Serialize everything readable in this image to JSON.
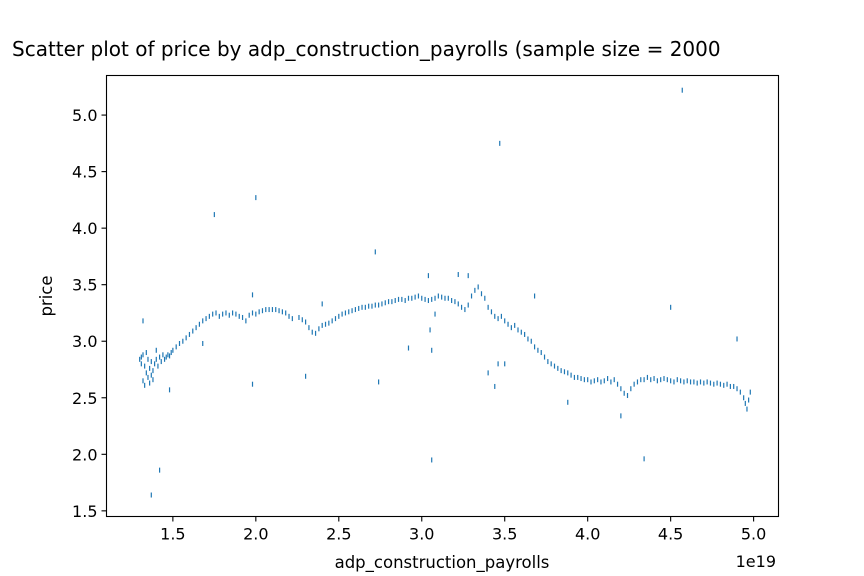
{
  "chart_data": {
    "type": "scatter",
    "title": "Scatter plot of price by adp_construction_payrolls (sample size = 2000",
    "xlabel": "adp_construction_payrolls",
    "ylabel": "price",
    "x_offset_text": "1e19",
    "x_scale_multiplier": 1e+19,
    "xlim": [
      1.1,
      5.15
    ],
    "ylim": [
      1.45,
      5.35
    ],
    "x_ticks": [
      1.5,
      2.0,
      2.5,
      3.0,
      3.5,
      4.0,
      4.5,
      5.0
    ],
    "x_tick_labels": [
      "1.5",
      "2.0",
      "2.5",
      "3.0",
      "3.5",
      "4.0",
      "4.5",
      "5.0"
    ],
    "y_ticks": [
      1.5,
      2.0,
      2.5,
      3.0,
      3.5,
      4.0,
      4.5,
      5.0
    ],
    "y_tick_labels": [
      "1.5",
      "2.0",
      "2.5",
      "3.0",
      "3.5",
      "4.0",
      "4.5",
      "5.0"
    ],
    "marker_color": "#1f77b4",
    "grid": false,
    "points": [
      [
        1.3,
        2.84
      ],
      [
        1.31,
        2.8
      ],
      [
        1.31,
        2.86
      ],
      [
        1.32,
        2.65
      ],
      [
        1.32,
        2.88
      ],
      [
        1.33,
        2.61
      ],
      [
        1.33,
        2.78
      ],
      [
        1.34,
        2.72
      ],
      [
        1.34,
        2.9
      ],
      [
        1.35,
        2.68
      ],
      [
        1.35,
        2.84
      ],
      [
        1.36,
        2.63
      ],
      [
        1.36,
        2.76
      ],
      [
        1.37,
        2.7
      ],
      [
        1.37,
        2.82
      ],
      [
        1.38,
        2.66
      ],
      [
        1.38,
        2.74
      ],
      [
        1.39,
        2.8
      ],
      [
        1.4,
        2.84
      ],
      [
        1.41,
        2.78
      ],
      [
        1.42,
        2.86
      ],
      [
        1.43,
        2.82
      ],
      [
        1.44,
        2.88
      ],
      [
        1.45,
        2.84
      ],
      [
        1.46,
        2.86
      ],
      [
        1.47,
        2.88
      ],
      [
        1.48,
        2.87
      ],
      [
        1.49,
        2.9
      ],
      [
        1.5,
        2.92
      ],
      [
        1.52,
        2.95
      ],
      [
        1.54,
        2.98
      ],
      [
        1.56,
        3.0
      ],
      [
        1.58,
        3.03
      ],
      [
        1.6,
        3.06
      ],
      [
        1.62,
        3.09
      ],
      [
        1.64,
        3.12
      ],
      [
        1.66,
        3.15
      ],
      [
        1.68,
        3.18
      ],
      [
        1.7,
        3.2
      ],
      [
        1.72,
        3.22
      ],
      [
        1.74,
        3.24
      ],
      [
        1.76,
        3.25
      ],
      [
        1.78,
        3.22
      ],
      [
        1.8,
        3.24
      ],
      [
        1.82,
        3.25
      ],
      [
        1.84,
        3.23
      ],
      [
        1.86,
        3.25
      ],
      [
        1.88,
        3.24
      ],
      [
        1.9,
        3.22
      ],
      [
        1.92,
        3.21
      ],
      [
        1.94,
        3.18
      ],
      [
        1.96,
        3.23
      ],
      [
        1.98,
        3.25
      ],
      [
        2.0,
        3.24
      ],
      [
        2.02,
        3.26
      ],
      [
        2.04,
        3.27
      ],
      [
        2.06,
        3.28
      ],
      [
        2.08,
        3.28
      ],
      [
        2.1,
        3.28
      ],
      [
        2.12,
        3.28
      ],
      [
        2.14,
        3.27
      ],
      [
        2.16,
        3.26
      ],
      [
        2.18,
        3.25
      ],
      [
        2.2,
        3.22
      ],
      [
        2.22,
        3.2
      ],
      [
        2.26,
        3.21
      ],
      [
        2.28,
        3.19
      ],
      [
        2.3,
        3.17
      ],
      [
        2.32,
        3.12
      ],
      [
        2.34,
        3.08
      ],
      [
        2.36,
        3.07
      ],
      [
        2.38,
        3.11
      ],
      [
        2.4,
        3.14
      ],
      [
        2.42,
        3.15
      ],
      [
        2.44,
        3.16
      ],
      [
        2.46,
        3.18
      ],
      [
        2.48,
        3.2
      ],
      [
        2.5,
        3.22
      ],
      [
        2.52,
        3.24
      ],
      [
        2.54,
        3.25
      ],
      [
        2.56,
        3.26
      ],
      [
        2.58,
        3.27
      ],
      [
        2.6,
        3.28
      ],
      [
        2.62,
        3.29
      ],
      [
        2.64,
        3.3
      ],
      [
        2.66,
        3.3
      ],
      [
        2.68,
        3.31
      ],
      [
        2.7,
        3.31
      ],
      [
        2.72,
        3.32
      ],
      [
        2.74,
        3.32
      ],
      [
        2.76,
        3.33
      ],
      [
        2.78,
        3.34
      ],
      [
        2.8,
        3.35
      ],
      [
        2.82,
        3.35
      ],
      [
        2.84,
        3.36
      ],
      [
        2.86,
        3.37
      ],
      [
        2.88,
        3.37
      ],
      [
        2.9,
        3.36
      ],
      [
        2.92,
        3.38
      ],
      [
        2.94,
        3.38
      ],
      [
        2.96,
        3.39
      ],
      [
        2.98,
        3.4
      ],
      [
        3.0,
        3.38
      ],
      [
        3.02,
        3.37
      ],
      [
        3.04,
        3.36
      ],
      [
        3.06,
        3.37
      ],
      [
        3.08,
        3.38
      ],
      [
        3.1,
        3.4
      ],
      [
        3.12,
        3.39
      ],
      [
        3.14,
        3.38
      ],
      [
        3.16,
        3.38
      ],
      [
        3.18,
        3.36
      ],
      [
        3.2,
        3.35
      ],
      [
        3.22,
        3.33
      ],
      [
        3.24,
        3.3
      ],
      [
        3.26,
        3.28
      ],
      [
        3.28,
        3.32
      ],
      [
        3.3,
        3.4
      ],
      [
        3.32,
        3.45
      ],
      [
        3.34,
        3.48
      ],
      [
        3.36,
        3.42
      ],
      [
        3.38,
        3.38
      ],
      [
        3.4,
        3.3
      ],
      [
        3.42,
        3.26
      ],
      [
        3.44,
        3.22
      ],
      [
        3.46,
        3.2
      ],
      [
        3.48,
        3.22
      ],
      [
        3.5,
        3.18
      ],
      [
        3.52,
        3.15
      ],
      [
        3.54,
        3.12
      ],
      [
        3.56,
        3.14
      ],
      [
        3.58,
        3.1
      ],
      [
        3.6,
        3.08
      ],
      [
        3.62,
        3.06
      ],
      [
        3.64,
        3.02
      ],
      [
        3.66,
        3.0
      ],
      [
        3.68,
        2.95
      ],
      [
        3.7,
        2.92
      ],
      [
        3.72,
        2.9
      ],
      [
        3.74,
        2.86
      ],
      [
        3.76,
        2.82
      ],
      [
        3.78,
        2.8
      ],
      [
        3.8,
        2.78
      ],
      [
        3.82,
        2.76
      ],
      [
        3.84,
        2.74
      ],
      [
        3.86,
        2.73
      ],
      [
        3.88,
        2.72
      ],
      [
        3.9,
        2.7
      ],
      [
        3.92,
        2.68
      ],
      [
        3.94,
        2.68
      ],
      [
        3.96,
        2.67
      ],
      [
        3.98,
        2.66
      ],
      [
        4.0,
        2.66
      ],
      [
        4.02,
        2.64
      ],
      [
        4.04,
        2.65
      ],
      [
        4.06,
        2.66
      ],
      [
        4.08,
        2.64
      ],
      [
        4.1,
        2.65
      ],
      [
        4.12,
        2.67
      ],
      [
        4.14,
        2.64
      ],
      [
        4.16,
        2.66
      ],
      [
        4.18,
        2.62
      ],
      [
        4.2,
        2.58
      ],
      [
        4.22,
        2.54
      ],
      [
        4.24,
        2.52
      ],
      [
        4.26,
        2.58
      ],
      [
        4.28,
        2.62
      ],
      [
        4.3,
        2.64
      ],
      [
        4.32,
        2.66
      ],
      [
        4.34,
        2.66
      ],
      [
        4.36,
        2.68
      ],
      [
        4.38,
        2.66
      ],
      [
        4.4,
        2.67
      ],
      [
        4.42,
        2.65
      ],
      [
        4.44,
        2.66
      ],
      [
        4.46,
        2.67
      ],
      [
        4.48,
        2.66
      ],
      [
        4.5,
        2.65
      ],
      [
        4.52,
        2.64
      ],
      [
        4.54,
        2.66
      ],
      [
        4.56,
        2.65
      ],
      [
        4.58,
        2.64
      ],
      [
        4.6,
        2.65
      ],
      [
        4.62,
        2.64
      ],
      [
        4.64,
        2.64
      ],
      [
        4.66,
        2.63
      ],
      [
        4.68,
        2.64
      ],
      [
        4.7,
        2.63
      ],
      [
        4.72,
        2.64
      ],
      [
        4.74,
        2.63
      ],
      [
        4.76,
        2.62
      ],
      [
        4.78,
        2.63
      ],
      [
        4.8,
        2.62
      ],
      [
        4.82,
        2.61
      ],
      [
        4.84,
        2.62
      ],
      [
        4.86,
        2.6
      ],
      [
        4.88,
        2.6
      ],
      [
        4.9,
        2.58
      ],
      [
        4.92,
        2.55
      ],
      [
        4.94,
        2.5
      ],
      [
        4.95,
        2.45
      ],
      [
        4.96,
        2.4
      ],
      [
        4.97,
        2.48
      ],
      [
        4.98,
        2.55
      ],
      [
        1.32,
        3.18
      ],
      [
        1.37,
        1.64
      ],
      [
        1.42,
        1.86
      ],
      [
        1.4,
        2.92
      ],
      [
        1.48,
        2.57
      ],
      [
        1.75,
        4.12
      ],
      [
        1.98,
        3.41
      ],
      [
        2.0,
        4.27
      ],
      [
        1.98,
        2.62
      ],
      [
        1.68,
        2.98
      ],
      [
        2.3,
        2.69
      ],
      [
        2.4,
        3.33
      ],
      [
        2.72,
        3.79
      ],
      [
        2.74,
        2.64
      ],
      [
        2.92,
        2.94
      ],
      [
        3.04,
        3.58
      ],
      [
        3.06,
        1.95
      ],
      [
        3.05,
        3.1
      ],
      [
        3.06,
        2.92
      ],
      [
        3.08,
        3.24
      ],
      [
        3.22,
        3.59
      ],
      [
        3.28,
        3.58
      ],
      [
        3.4,
        2.72
      ],
      [
        3.44,
        2.6
      ],
      [
        3.46,
        2.8
      ],
      [
        3.47,
        4.75
      ],
      [
        3.5,
        2.8
      ],
      [
        3.68,
        3.4
      ],
      [
        3.88,
        2.46
      ],
      [
        4.2,
        2.34
      ],
      [
        4.34,
        1.96
      ],
      [
        4.5,
        3.3
      ],
      [
        4.57,
        5.22
      ],
      [
        4.9,
        3.02
      ]
    ]
  }
}
